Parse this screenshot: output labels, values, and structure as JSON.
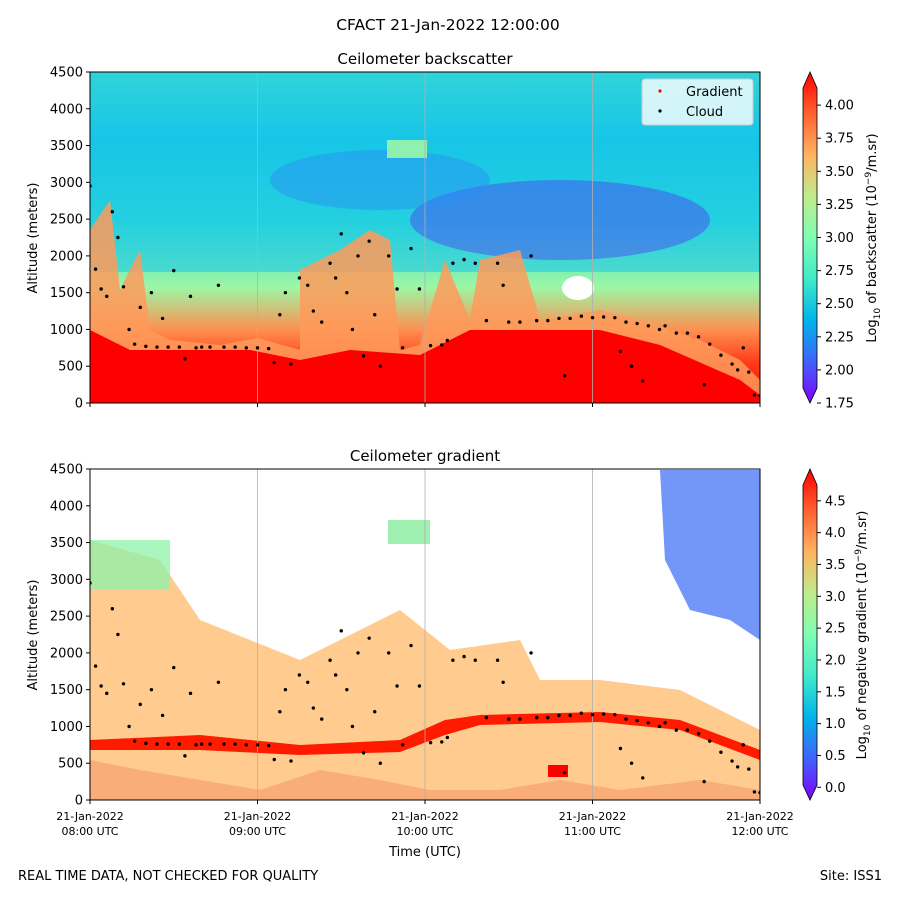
{
  "suptitle": "CFACT 21-Jan-2022 12:00:00",
  "footer_left": "REAL TIME DATA, NOT CHECKED FOR QUALITY",
  "footer_right": "Site: ISS1",
  "colormap": [
    "#8000ff",
    "#4062fa",
    "#01b3eb",
    "#41eac9",
    "#7ffeb3",
    "#c0eb8c",
    "#ffb360",
    "#ff6131",
    "#ff0000"
  ],
  "cloud_color": "#000000",
  "gradient_color": "#ff0000",
  "time_axis": {
    "xlabel": "Time (UTC)",
    "range": [
      "2022-01-21T08:00",
      "2022-01-21T12:00"
    ],
    "ticks": [
      {
        "l1": "21-Jan-2022",
        "l2": "08:00 UTC",
        "t": "2022-01-21T08:00"
      },
      {
        "l1": "21-Jan-2022",
        "l2": "09:00 UTC",
        "t": "2022-01-21T09:00"
      },
      {
        "l1": "21-Jan-2022",
        "l2": "10:00 UTC",
        "t": "2022-01-21T10:00"
      },
      {
        "l1": "21-Jan-2022",
        "l2": "11:00 UTC",
        "t": "2022-01-21T11:00"
      },
      {
        "l1": "21-Jan-2022",
        "l2": "12:00 UTC",
        "t": "2022-01-21T12:00"
      }
    ]
  },
  "chart_data": [
    {
      "type": "heatmap",
      "title": "Ceilometer backscatter",
      "ylabel": "Altitude (meters)",
      "ylim": [
        0,
        4500
      ],
      "yticks": [
        "0",
        "500",
        "1000",
        "1500",
        "2000",
        "2500",
        "3000",
        "3500",
        "4000",
        "4500"
      ],
      "legend": {
        "position": "top-right",
        "entries": [
          "Gradient",
          "Cloud"
        ]
      },
      "colorbar": {
        "label_main": "Log",
        "label_sub": "10",
        "label_rest": " of backscatter (10",
        "label_sup": "−9",
        "label_end": "/m.sr)",
        "range": [
          1.75,
          4.25
        ],
        "ticks": [
          "1.75",
          "2.00",
          "2.25",
          "2.50",
          "2.75",
          "3.00",
          "3.25",
          "3.50",
          "3.75",
          "4.00"
        ]
      }
    },
    {
      "type": "heatmap",
      "title": "Ceilometer gradient",
      "ylabel": "Altitude (meters)",
      "ylim": [
        0,
        4500
      ],
      "yticks": [
        "0",
        "500",
        "1000",
        "1500",
        "2000",
        "2500",
        "3000",
        "3500",
        "4000",
        "4500"
      ],
      "colorbar": {
        "label_main": "Log",
        "label_sub": "10",
        "label_rest": " of negative gradient (10",
        "label_sup": "−9",
        "label_end": "/m.sr)",
        "range": [
          -0.2,
          5.0
        ],
        "ticks": [
          "0.0",
          "0.5",
          "1.0",
          "1.5",
          "2.0",
          "2.5",
          "3.0",
          "3.5",
          "4.0",
          "4.5"
        ]
      }
    }
  ],
  "cloud_points": [
    [
      "2022-01-21T08:00",
      2950
    ],
    [
      "2022-01-21T08:02",
      1820
    ],
    [
      "2022-01-21T08:04",
      1550
    ],
    [
      "2022-01-21T08:06",
      1450
    ],
    [
      "2022-01-21T08:08",
      2600
    ],
    [
      "2022-01-21T08:10",
      2250
    ],
    [
      "2022-01-21T08:12",
      1580
    ],
    [
      "2022-01-21T08:14",
      1000
    ],
    [
      "2022-01-21T08:16",
      800
    ],
    [
      "2022-01-21T08:18",
      1300
    ],
    [
      "2022-01-21T08:20",
      770
    ],
    [
      "2022-01-21T08:22",
      1500
    ],
    [
      "2022-01-21T08:24",
      760
    ],
    [
      "2022-01-21T08:26",
      1150
    ],
    [
      "2022-01-21T08:28",
      760
    ],
    [
      "2022-01-21T08:30",
      1800
    ],
    [
      "2022-01-21T08:32",
      760
    ],
    [
      "2022-01-21T08:34",
      600
    ],
    [
      "2022-01-21T08:36",
      1450
    ],
    [
      "2022-01-21T08:38",
      750
    ],
    [
      "2022-01-21T08:40",
      760
    ],
    [
      "2022-01-21T08:43",
      760
    ],
    [
      "2022-01-21T08:46",
      1600
    ],
    [
      "2022-01-21T08:48",
      760
    ],
    [
      "2022-01-21T08:52",
      760
    ],
    [
      "2022-01-21T08:56",
      750
    ],
    [
      "2022-01-21T09:00",
      750
    ],
    [
      "2022-01-21T09:04",
      740
    ],
    [
      "2022-01-21T09:06",
      550
    ],
    [
      "2022-01-21T09:08",
      1200
    ],
    [
      "2022-01-21T09:10",
      1500
    ],
    [
      "2022-01-21T09:12",
      530
    ],
    [
      "2022-01-21T09:15",
      1700
    ],
    [
      "2022-01-21T09:18",
      1600
    ],
    [
      "2022-01-21T09:20",
      1250
    ],
    [
      "2022-01-21T09:23",
      1100
    ],
    [
      "2022-01-21T09:26",
      1900
    ],
    [
      "2022-01-21T09:28",
      1700
    ],
    [
      "2022-01-21T09:30",
      2300
    ],
    [
      "2022-01-21T09:32",
      1500
    ],
    [
      "2022-01-21T09:34",
      1000
    ],
    [
      "2022-01-21T09:36",
      2000
    ],
    [
      "2022-01-21T09:38",
      640
    ],
    [
      "2022-01-21T09:40",
      2200
    ],
    [
      "2022-01-21T09:42",
      1200
    ],
    [
      "2022-01-21T09:44",
      500
    ],
    [
      "2022-01-21T09:47",
      2000
    ],
    [
      "2022-01-21T09:50",
      1550
    ],
    [
      "2022-01-21T09:52",
      750
    ],
    [
      "2022-01-21T09:55",
      2100
    ],
    [
      "2022-01-21T09:58",
      1550
    ],
    [
      "2022-01-21T10:02",
      780
    ],
    [
      "2022-01-21T10:06",
      790
    ],
    [
      "2022-01-21T10:08",
      850
    ],
    [
      "2022-01-21T10:10",
      1900
    ],
    [
      "2022-01-21T10:14",
      1950
    ],
    [
      "2022-01-21T10:18",
      1900
    ],
    [
      "2022-01-21T10:22",
      1120
    ],
    [
      "2022-01-21T10:26",
      1900
    ],
    [
      "2022-01-21T10:28",
      1600
    ],
    [
      "2022-01-21T10:30",
      1100
    ],
    [
      "2022-01-21T10:34",
      1100
    ],
    [
      "2022-01-21T10:38",
      2000
    ],
    [
      "2022-01-21T10:40",
      1120
    ],
    [
      "2022-01-21T10:44",
      1120
    ],
    [
      "2022-01-21T10:48",
      1150
    ],
    [
      "2022-01-21T10:50",
      370
    ],
    [
      "2022-01-21T10:52",
      1150
    ],
    [
      "2022-01-21T10:56",
      1180
    ],
    [
      "2022-01-21T11:00",
      1160
    ],
    [
      "2022-01-21T11:04",
      1170
    ],
    [
      "2022-01-21T11:08",
      1160
    ],
    [
      "2022-01-21T11:10",
      700
    ],
    [
      "2022-01-21T11:12",
      1100
    ],
    [
      "2022-01-21T11:14",
      500
    ],
    [
      "2022-01-21T11:16",
      1080
    ],
    [
      "2022-01-21T11:18",
      300
    ],
    [
      "2022-01-21T11:20",
      1050
    ],
    [
      "2022-01-21T11:24",
      1000
    ],
    [
      "2022-01-21T11:26",
      1050
    ],
    [
      "2022-01-21T11:30",
      950
    ],
    [
      "2022-01-21T11:34",
      950
    ],
    [
      "2022-01-21T11:38",
      900
    ],
    [
      "2022-01-21T11:40",
      250
    ],
    [
      "2022-01-21T11:42",
      800
    ],
    [
      "2022-01-21T11:46",
      650
    ],
    [
      "2022-01-21T11:50",
      530
    ],
    [
      "2022-01-21T11:52",
      450
    ],
    [
      "2022-01-21T11:54",
      750
    ],
    [
      "2022-01-21T11:56",
      420
    ],
    [
      "2022-01-21T11:58",
      110
    ],
    [
      "2022-01-21T12:00",
      100
    ]
  ]
}
